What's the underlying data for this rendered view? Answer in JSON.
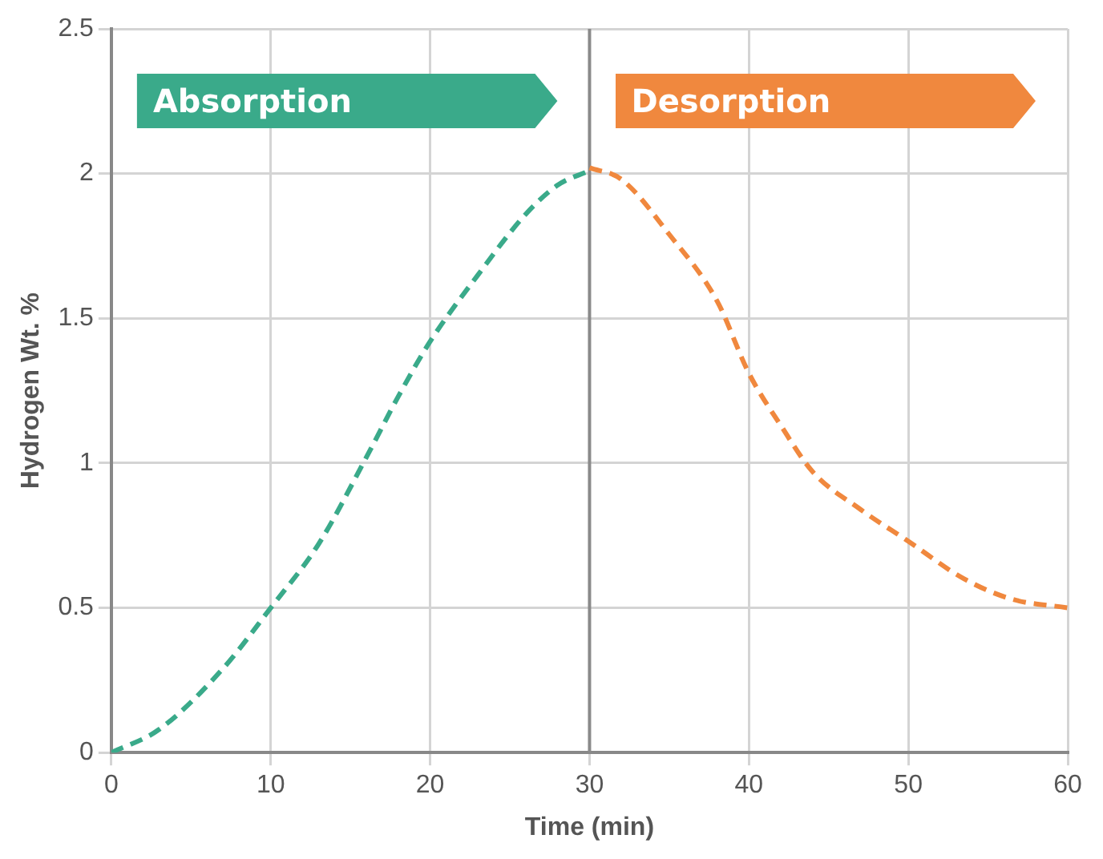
{
  "chart_data": {
    "type": "line",
    "xlabel": "Time (min)",
    "ylabel": "Hydrogen Wt. %",
    "xlim": [
      0,
      60
    ],
    "xticks": [
      0,
      10,
      20,
      30,
      40,
      50,
      60
    ],
    "ylim": [
      0,
      2.5
    ],
    "yticks": [
      0,
      0.5,
      1,
      1.5,
      2,
      2.5
    ],
    "grid": true,
    "legend": false,
    "marker": "none",
    "line_style": "dashed",
    "series": [
      {
        "color": "#3aaa8a",
        "x": [
          0,
          3,
          7,
          10,
          13,
          16,
          18,
          20,
          23,
          26,
          28,
          30
        ],
        "values": [
          0,
          0.08,
          0.29,
          0.5,
          0.72,
          1.02,
          1.23,
          1.42,
          1.65,
          1.86,
          1.96,
          2.01
        ]
      },
      {
        "color": "#f0883e",
        "x": [
          30,
          32,
          35,
          38,
          40,
          42,
          44,
          47,
          50,
          53.5,
          56.5,
          60
        ],
        "values": [
          2.02,
          1.98,
          1.79,
          1.56,
          1.31,
          1.13,
          0.97,
          0.84,
          0.73,
          0.6,
          0.53,
          0.5
        ]
      }
    ],
    "ref_lines": [
      {
        "axis": "x",
        "value": 30,
        "color": "#8a8a8a"
      }
    ],
    "annotations": [
      "Absorption",
      "Desorption"
    ]
  }
}
